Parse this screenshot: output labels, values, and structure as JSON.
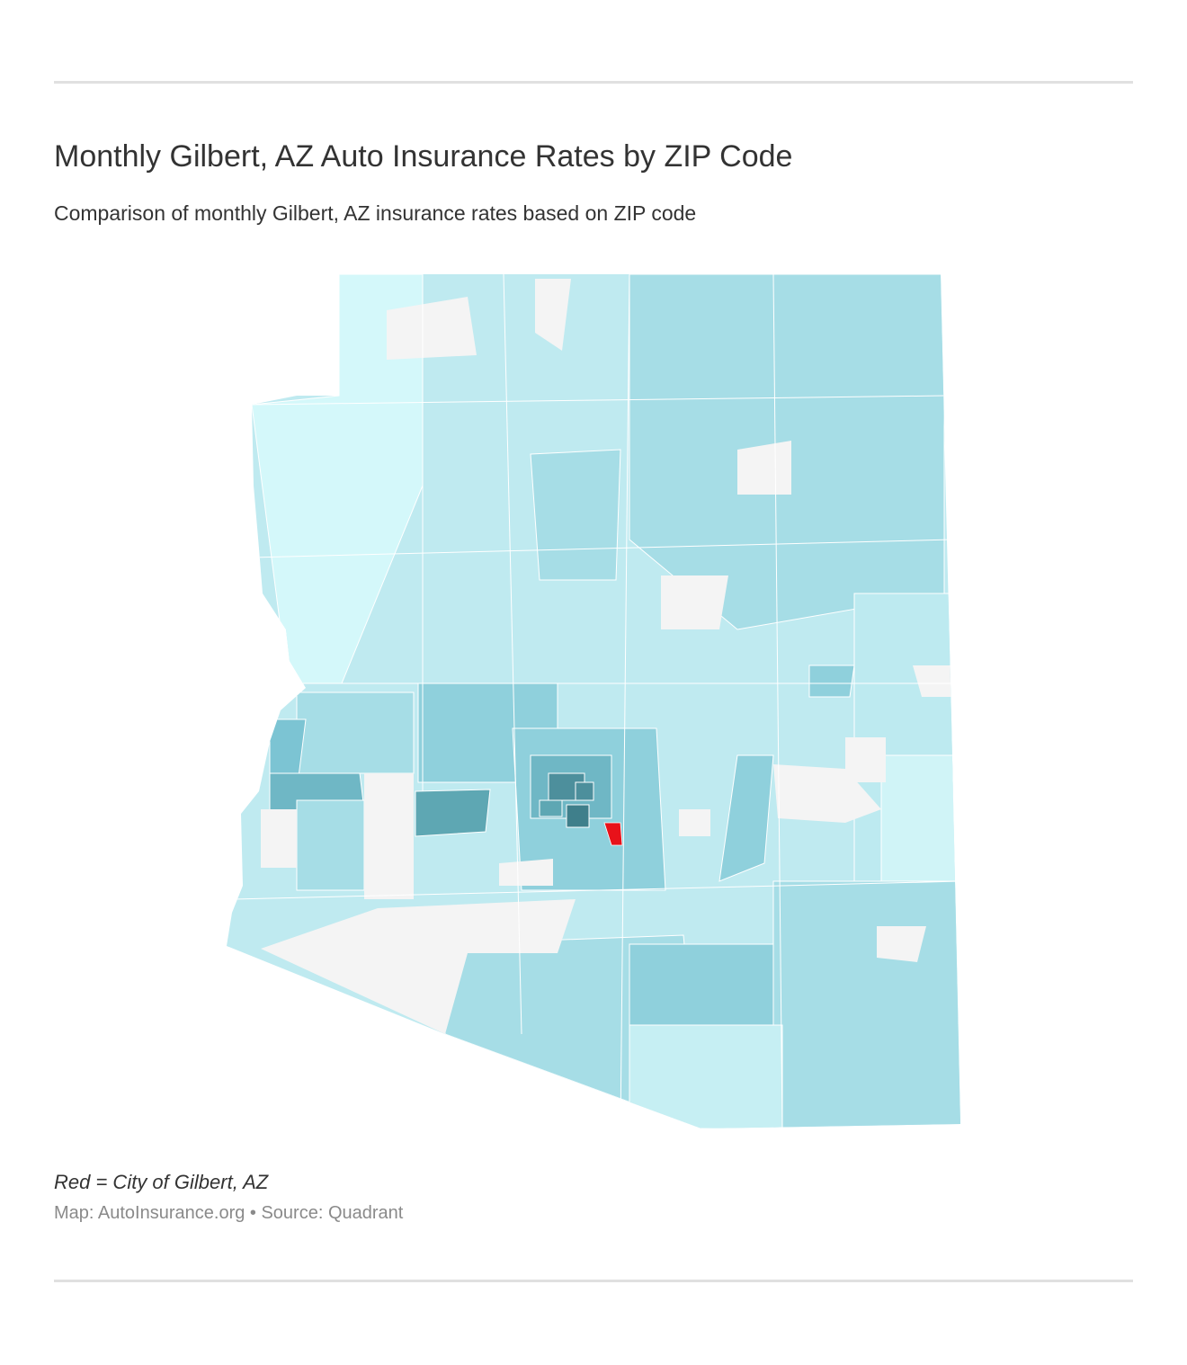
{
  "header": {
    "title": "Monthly Gilbert, AZ Auto Insurance Rates by ZIP Code",
    "subtitle": "Comparison of monthly Gilbert, AZ insurance rates based on ZIP code"
  },
  "footer": {
    "note": "Red = City of Gilbert, AZ",
    "source": "Map: AutoInsurance.org • Source: Quadrant"
  }
}
